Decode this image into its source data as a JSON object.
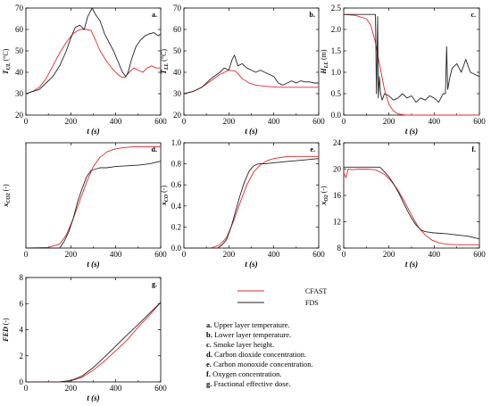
{
  "colors": {
    "CFAST": "#e8262b",
    "FDS": "#222222"
  },
  "legend": {
    "cfast_label": "CFAST",
    "fds_label": "FDS"
  },
  "captions": [
    {
      "key": "a.",
      "text": " Upper layer temperature."
    },
    {
      "key": "b.",
      "text": " Lower layer temperature."
    },
    {
      "key": "c.",
      "text": " Smoke layer height."
    },
    {
      "key": "d.",
      "text": " Carbon dioxide concentration."
    },
    {
      "key": "e.",
      "text": " Carbon monoxide concentration."
    },
    {
      "key": "f.",
      "text": " Oxygen concentration."
    },
    {
      "key": "g.",
      "text": " Fractional effective dose."
    }
  ],
  "chart_data": [
    {
      "id": "a",
      "panel_label": "a.",
      "type": "line",
      "xlabel": "t (s)",
      "ylabel_main": "T",
      "ylabel_sub": "UL",
      "ylabel_unit": " (°C)",
      "xlim": [
        0,
        600
      ],
      "ylim": [
        20,
        70
      ],
      "xticks": [
        0,
        200,
        400,
        600
      ],
      "yticks": [
        20,
        30,
        40,
        50,
        60,
        70
      ],
      "series": [
        {
          "name": "CFAST",
          "color": "#e8262b",
          "x": [
            0,
            30,
            60,
            90,
            120,
            150,
            180,
            210,
            240,
            270,
            290,
            310,
            330,
            360,
            390,
            420,
            440,
            460,
            480,
            500,
            520,
            540,
            560,
            580,
            600
          ],
          "y": [
            30,
            31,
            33,
            37,
            43,
            49,
            54,
            58,
            60,
            60,
            59.5,
            55,
            50,
            45,
            41,
            38,
            37.5,
            40,
            42,
            41,
            40,
            42,
            43,
            42,
            42
          ]
        },
        {
          "name": "FDS",
          "color": "#222222",
          "x": [
            0,
            30,
            60,
            90,
            120,
            150,
            180,
            200,
            220,
            240,
            260,
            275,
            285,
            295,
            310,
            330,
            350,
            370,
            390,
            410,
            430,
            445,
            455,
            470,
            490,
            510,
            530,
            550,
            570,
            590,
            600
          ],
          "y": [
            30,
            31,
            32,
            35,
            38,
            43,
            50,
            56,
            61,
            62,
            60,
            66,
            68,
            70,
            67,
            64,
            58,
            54,
            50,
            45,
            40,
            38,
            40,
            46,
            52,
            55,
            57,
            58,
            58.5,
            57,
            58
          ]
        }
      ]
    },
    {
      "id": "b",
      "panel_label": "b.",
      "type": "line",
      "xlabel": "t (s)",
      "ylabel_main": "T",
      "ylabel_sub": "LL",
      "ylabel_unit": " (°C)",
      "xlim": [
        0,
        600
      ],
      "ylim": [
        20,
        70
      ],
      "xticks": [
        0,
        200,
        400,
        600
      ],
      "yticks": [
        20,
        30,
        40,
        50,
        60,
        70
      ],
      "series": [
        {
          "name": "CFAST",
          "color": "#e8262b",
          "x": [
            0,
            40,
            80,
            120,
            160,
            200,
            230,
            260,
            290,
            320,
            360,
            420,
            480,
            540,
            600
          ],
          "y": [
            30,
            31,
            33,
            36,
            39,
            41,
            40.5,
            37,
            35,
            34,
            33.5,
            33,
            33,
            33,
            33
          ]
        },
        {
          "name": "FDS",
          "color": "#222222",
          "x": [
            0,
            40,
            80,
            120,
            160,
            180,
            200,
            215,
            225,
            240,
            260,
            280,
            300,
            320,
            340,
            360,
            380,
            400,
            420,
            440,
            460,
            480,
            500,
            520,
            540,
            560,
            580,
            600
          ],
          "y": [
            30,
            31,
            33,
            37,
            40,
            42,
            41,
            46,
            48,
            43,
            44,
            42,
            41,
            40,
            41,
            40,
            39,
            38,
            35,
            34,
            35,
            36,
            35,
            36,
            35.5,
            35.5,
            35,
            35
          ]
        }
      ]
    },
    {
      "id": "c",
      "panel_label": "c.",
      "type": "line",
      "xlabel": "t (s)",
      "ylabel_main": "H",
      "ylabel_sub": "LL",
      "ylabel_unit": " (m)",
      "xlim": [
        0,
        600
      ],
      "ylim": [
        0,
        2.5
      ],
      "xticks": [
        0,
        200,
        400,
        600
      ],
      "yticks": [
        0.0,
        0.5,
        1.0,
        1.5,
        2.0,
        2.5
      ],
      "series": [
        {
          "name": "CFAST",
          "color": "#e8262b",
          "x": [
            0,
            50,
            100,
            120,
            140,
            160,
            180,
            200,
            220,
            240,
            260,
            280,
            300,
            600
          ],
          "y": [
            2.35,
            2.33,
            2.25,
            2.1,
            1.7,
            1.15,
            0.6,
            0.25,
            0.1,
            0.03,
            0.01,
            0.0,
            0.0,
            0.0
          ]
        },
        {
          "name": "FDS",
          "color": "#222222",
          "x": [
            0,
            140,
            145,
            150,
            153,
            158,
            163,
            170,
            180,
            200,
            220,
            240,
            260,
            280,
            300,
            320,
            340,
            360,
            380,
            400,
            420,
            440,
            450,
            455,
            460,
            470,
            480,
            500,
            520,
            540,
            560,
            580,
            600
          ],
          "y": [
            2.35,
            2.35,
            0.5,
            2.3,
            0.4,
            0.9,
            0.5,
            0.35,
            0.5,
            0.45,
            0.35,
            0.4,
            0.5,
            0.4,
            0.45,
            0.3,
            0.4,
            0.35,
            0.45,
            0.4,
            0.3,
            0.5,
            0.5,
            1.6,
            0.6,
            0.9,
            1.1,
            1.2,
            1.0,
            1.3,
            1.0,
            0.95,
            0.9
          ]
        }
      ]
    },
    {
      "id": "d",
      "panel_label": "d.",
      "type": "line",
      "xlabel": "t (s)",
      "ylabel_main": "x",
      "ylabel_sub": "CO2",
      "ylabel_unit": " (-)",
      "xlim": [
        0,
        600
      ],
      "ylim": [
        0,
        8
      ],
      "xticks": [
        0,
        200,
        400,
        600
      ],
      "yticks": [],
      "series": [
        {
          "name": "CFAST",
          "color": "#e8262b",
          "x": [
            0,
            100,
            150,
            180,
            210,
            240,
            270,
            300,
            330,
            360,
            390,
            420,
            450,
            480,
            540,
            600
          ],
          "y": [
            0,
            0.05,
            0.3,
            1.0,
            2.2,
            3.6,
            5.0,
            6.2,
            6.9,
            7.3,
            7.5,
            7.6,
            7.65,
            7.7,
            7.7,
            7.7
          ]
        },
        {
          "name": "FDS",
          "color": "#222222",
          "x": [
            0,
            150,
            170,
            190,
            210,
            230,
            250,
            270,
            290,
            310,
            330,
            360,
            400,
            450,
            500,
            550,
            600
          ],
          "y": [
            0,
            0.0,
            0.5,
            1.2,
            2.2,
            3.5,
            4.5,
            5.4,
            5.9,
            6.0,
            6.1,
            6.1,
            6.2,
            6.25,
            6.3,
            6.4,
            6.6
          ]
        }
      ]
    },
    {
      "id": "e",
      "panel_label": "e.",
      "type": "line",
      "xlabel": "t (s)",
      "ylabel_main": "x",
      "ylabel_sub": "CO",
      "ylabel_unit": " (-)",
      "xlim": [
        0,
        600
      ],
      "ylim": [
        0,
        1.0
      ],
      "xticks": [
        0,
        200,
        400,
        600
      ],
      "yticks": [
        0.0,
        0.2,
        0.4,
        0.6,
        0.8,
        1.0
      ],
      "series": [
        {
          "name": "CFAST",
          "color": "#e8262b",
          "x": [
            0,
            120,
            160,
            190,
            220,
            250,
            280,
            310,
            340,
            370,
            400,
            430,
            460,
            500,
            550,
            600
          ],
          "y": [
            0,
            0.0,
            0.03,
            0.1,
            0.25,
            0.43,
            0.6,
            0.72,
            0.79,
            0.83,
            0.85,
            0.86,
            0.87,
            0.87,
            0.87,
            0.87
          ]
        },
        {
          "name": "FDS",
          "color": "#222222",
          "x": [
            0,
            150,
            170,
            190,
            210,
            230,
            250,
            270,
            290,
            310,
            330,
            360,
            400,
            450,
            500,
            550,
            600
          ],
          "y": [
            0,
            0.0,
            0.03,
            0.08,
            0.2,
            0.35,
            0.5,
            0.63,
            0.73,
            0.78,
            0.8,
            0.8,
            0.81,
            0.82,
            0.83,
            0.84,
            0.85
          ]
        }
      ]
    },
    {
      "id": "f",
      "panel_label": "f.",
      "type": "line",
      "xlabel": "t (s)",
      "ylabel_main": "x",
      "ylabel_sub": "O2",
      "ylabel_unit": " (-)",
      "xlim": [
        0,
        600
      ],
      "ylim": [
        8,
        24
      ],
      "xticks": [
        0,
        200,
        400,
        600
      ],
      "yticks": [
        8,
        12,
        16,
        20,
        24
      ],
      "series": [
        {
          "name": "CFAST",
          "color": "#e8262b",
          "x": [
            0,
            10,
            20,
            40,
            60,
            100,
            140,
            180,
            210,
            240,
            270,
            300,
            330,
            360,
            390,
            420,
            450,
            500,
            550,
            600
          ],
          "y": [
            19.5,
            18.7,
            20.0,
            19.9,
            20.0,
            20.0,
            19.9,
            19.2,
            18.2,
            16.8,
            15.0,
            13.0,
            11.2,
            10.0,
            9.2,
            8.8,
            8.6,
            8.5,
            8.5,
            8.5
          ]
        },
        {
          "name": "FDS",
          "color": "#222222",
          "x": [
            0,
            100,
            160,
            180,
            200,
            220,
            240,
            260,
            280,
            300,
            320,
            340,
            360,
            380,
            400,
            450,
            500,
            550,
            600
          ],
          "y": [
            20.3,
            20.3,
            20.3,
            19.6,
            18.8,
            17.8,
            16.6,
            15.2,
            13.8,
            12.5,
            11.5,
            10.8,
            10.5,
            10.4,
            10.3,
            10.2,
            10.0,
            9.8,
            9.4
          ]
        }
      ]
    },
    {
      "id": "g",
      "panel_label": "g.",
      "type": "line",
      "xlabel": "t (s)",
      "ylabel_main": "FED",
      "ylabel_sub": "",
      "ylabel_unit": " (-)",
      "xlim": [
        0,
        600
      ],
      "ylim": [
        0,
        8
      ],
      "xticks": [
        0,
        200,
        400,
        600
      ],
      "yticks": [
        0,
        2,
        4,
        6,
        8
      ],
      "series": [
        {
          "name": "CFAST",
          "color": "#e8262b",
          "x": [
            0,
            150,
            200,
            250,
            300,
            350,
            400,
            450,
            500,
            550,
            600
          ],
          "y": [
            0,
            0.01,
            0.08,
            0.35,
            0.9,
            1.6,
            2.4,
            3.2,
            4.2,
            5.1,
            6.1
          ]
        },
        {
          "name": "FDS",
          "color": "#222222",
          "x": [
            0,
            150,
            200,
            250,
            300,
            350,
            400,
            450,
            500,
            550,
            600
          ],
          "y": [
            0,
            0.01,
            0.1,
            0.45,
            1.1,
            1.9,
            2.75,
            3.6,
            4.4,
            5.25,
            6.1
          ]
        }
      ]
    }
  ]
}
